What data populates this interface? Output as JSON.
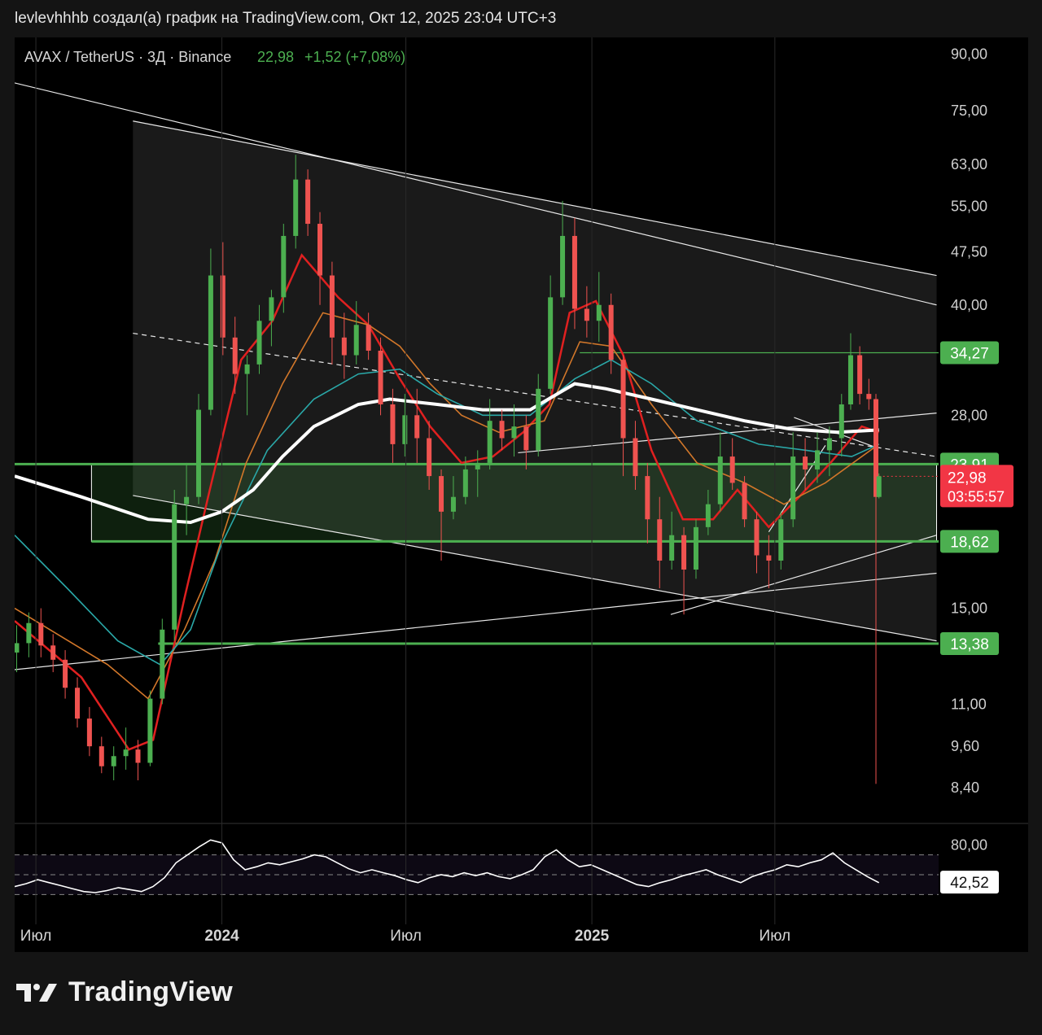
{
  "header": {
    "attribution": "levlevhhhb создал(а) график на TradingView.com, Окт 12, 2025 23:04 UTC+3"
  },
  "legend": {
    "symbol": "AVAX / TetherUS · 3Д · Binance",
    "price": "22,98",
    "change": "+1,52 (+7,08%)"
  },
  "colors": {
    "up": "#4caf50",
    "down": "#ef5350",
    "ema_short": "#e02020",
    "ema_mid": "#d2772a",
    "ema_long": "#2aa8a8",
    "ema_200": "#ffffff",
    "level_box": "#3b7a3b",
    "last_price": "#f23645"
  },
  "axis": {
    "price_ticks": [
      "90,00",
      "75,00",
      "63,00",
      "55,00",
      "47,50",
      "40,00",
      "28,00",
      "15,00",
      "11,00",
      "9,60",
      "8,40"
    ],
    "time_ticks": [
      "Июл",
      "2024",
      "Июл",
      "2025",
      "Июл"
    ],
    "rsi_ticks": [
      "80,00"
    ]
  },
  "badges": {
    "levels": [
      "34,27",
      "23,91",
      "18,62",
      "13,38"
    ],
    "last_price": "22,98",
    "countdown": "03:55:57",
    "rsi_value": "42,52"
  },
  "chart_data": {
    "type": "candlestick",
    "symbol": "AVAX / TetherUS",
    "timeframe": "3Д",
    "exchange": "Binance",
    "y_scale": "log",
    "ylim": [
      7.5,
      95
    ],
    "x_range": [
      "2023-06-10",
      "2025-12-10"
    ],
    "candles": [
      {
        "date": "2023-06-12",
        "o": 13.0,
        "h": 14.2,
        "l": 12.2,
        "c": 13.4
      },
      {
        "date": "2023-06-24",
        "o": 13.4,
        "h": 14.8,
        "l": 12.8,
        "c": 14.3
      },
      {
        "date": "2023-07-06",
        "o": 14.3,
        "h": 15.0,
        "l": 12.8,
        "c": 13.3
      },
      {
        "date": "2023-07-18",
        "o": 13.3,
        "h": 13.8,
        "l": 12.2,
        "c": 12.7
      },
      {
        "date": "2023-07-30",
        "o": 12.7,
        "h": 13.1,
        "l": 11.2,
        "c": 11.6
      },
      {
        "date": "2023-08-11",
        "o": 11.6,
        "h": 12.0,
        "l": 10.2,
        "c": 10.5
      },
      {
        "date": "2023-08-23",
        "o": 10.5,
        "h": 10.9,
        "l": 9.3,
        "c": 9.6
      },
      {
        "date": "2023-09-04",
        "o": 9.6,
        "h": 9.9,
        "l": 8.8,
        "c": 9.0
      },
      {
        "date": "2023-09-16",
        "o": 9.0,
        "h": 9.6,
        "l": 8.6,
        "c": 9.3
      },
      {
        "date": "2023-09-28",
        "o": 9.3,
        "h": 10.2,
        "l": 8.9,
        "c": 9.5
      },
      {
        "date": "2023-10-10",
        "o": 9.5,
        "h": 9.8,
        "l": 8.6,
        "c": 9.1
      },
      {
        "date": "2023-10-22",
        "o": 9.1,
        "h": 11.5,
        "l": 9.0,
        "c": 11.2
      },
      {
        "date": "2023-11-03",
        "o": 11.2,
        "h": 14.5,
        "l": 11.0,
        "c": 14.0
      },
      {
        "date": "2023-11-15",
        "o": 14.0,
        "h": 22.0,
        "l": 13.5,
        "c": 21.0
      },
      {
        "date": "2023-11-27",
        "o": 21.0,
        "h": 24.0,
        "l": 19.0,
        "c": 21.5
      },
      {
        "date": "2023-12-09",
        "o": 21.5,
        "h": 30.0,
        "l": 21.0,
        "c": 28.5
      },
      {
        "date": "2023-12-21",
        "o": 28.5,
        "h": 48.0,
        "l": 28.0,
        "c": 44.0
      },
      {
        "date": "2024-01-02",
        "o": 44.0,
        "h": 49.0,
        "l": 34.0,
        "c": 36.0
      },
      {
        "date": "2024-01-14",
        "o": 36.0,
        "h": 38.5,
        "l": 30.0,
        "c": 32.0
      },
      {
        "date": "2024-01-26",
        "o": 32.0,
        "h": 34.0,
        "l": 28.0,
        "c": 33.0
      },
      {
        "date": "2024-02-07",
        "o": 33.0,
        "h": 40.0,
        "l": 32.0,
        "c": 38.0
      },
      {
        "date": "2024-02-19",
        "o": 38.0,
        "h": 42.0,
        "l": 35.0,
        "c": 41.0
      },
      {
        "date": "2024-03-02",
        "o": 41.0,
        "h": 52.0,
        "l": 39.0,
        "c": 50.0
      },
      {
        "date": "2024-03-14",
        "o": 50.0,
        "h": 65.0,
        "l": 48.0,
        "c": 60.0
      },
      {
        "date": "2024-03-26",
        "o": 60.0,
        "h": 62.0,
        "l": 50.0,
        "c": 52.0
      },
      {
        "date": "2024-04-07",
        "o": 52.0,
        "h": 54.0,
        "l": 40.0,
        "c": 44.0
      },
      {
        "date": "2024-04-19",
        "o": 44.0,
        "h": 46.0,
        "l": 33.0,
        "c": 36.0
      },
      {
        "date": "2024-05-01",
        "o": 36.0,
        "h": 39.0,
        "l": 31.5,
        "c": 34.0
      },
      {
        "date": "2024-05-13",
        "o": 34.0,
        "h": 40.5,
        "l": 33.0,
        "c": 37.5
      },
      {
        "date": "2024-05-25",
        "o": 37.5,
        "h": 39.0,
        "l": 33.5,
        "c": 34.5
      },
      {
        "date": "2024-06-06",
        "o": 34.5,
        "h": 36.0,
        "l": 28.0,
        "c": 29.0
      },
      {
        "date": "2024-06-18",
        "o": 29.0,
        "h": 30.5,
        "l": 24.0,
        "c": 25.5
      },
      {
        "date": "2024-06-30",
        "o": 25.5,
        "h": 30.0,
        "l": 24.5,
        "c": 28.0
      },
      {
        "date": "2024-07-12",
        "o": 28.0,
        "h": 30.5,
        "l": 24.0,
        "c": 26.0
      },
      {
        "date": "2024-07-24",
        "o": 26.0,
        "h": 27.5,
        "l": 22.0,
        "c": 23.0
      },
      {
        "date": "2024-08-05",
        "o": 23.0,
        "h": 23.5,
        "l": 17.5,
        "c": 20.5
      },
      {
        "date": "2024-08-17",
        "o": 20.5,
        "h": 23.0,
        "l": 20.0,
        "c": 21.5
      },
      {
        "date": "2024-08-29",
        "o": 21.5,
        "h": 24.5,
        "l": 21.0,
        "c": 23.5
      },
      {
        "date": "2024-09-10",
        "o": 23.5,
        "h": 25.0,
        "l": 21.5,
        "c": 24.0
      },
      {
        "date": "2024-09-22",
        "o": 24.0,
        "h": 29.5,
        "l": 23.5,
        "c": 27.5
      },
      {
        "date": "2024-10-04",
        "o": 27.5,
        "h": 28.5,
        "l": 25.0,
        "c": 26.0
      },
      {
        "date": "2024-10-16",
        "o": 26.0,
        "h": 29.0,
        "l": 24.5,
        "c": 27.0
      },
      {
        "date": "2024-10-28",
        "o": 27.0,
        "h": 28.0,
        "l": 23.5,
        "c": 25.0
      },
      {
        "date": "2024-11-09",
        "o": 25.0,
        "h": 32.0,
        "l": 24.5,
        "c": 30.5
      },
      {
        "date": "2024-11-21",
        "o": 30.5,
        "h": 44.0,
        "l": 30.0,
        "c": 41.0
      },
      {
        "date": "2024-12-03",
        "o": 41.0,
        "h": 56.0,
        "l": 40.0,
        "c": 50.0
      },
      {
        "date": "2024-12-15",
        "o": 50.0,
        "h": 53.0,
        "l": 37.0,
        "c": 39.5
      },
      {
        "date": "2024-12-27",
        "o": 39.5,
        "h": 42.5,
        "l": 36.0,
        "c": 38.0
      },
      {
        "date": "2025-01-08",
        "o": 38.0,
        "h": 44.5,
        "l": 35.5,
        "c": 40.0
      },
      {
        "date": "2025-01-20",
        "o": 40.0,
        "h": 41.5,
        "l": 32.0,
        "c": 33.5
      },
      {
        "date": "2025-02-01",
        "o": 33.5,
        "h": 34.0,
        "l": 23.0,
        "c": 26.0
      },
      {
        "date": "2025-02-13",
        "o": 26.0,
        "h": 27.5,
        "l": 22.0,
        "c": 23.0
      },
      {
        "date": "2025-02-25",
        "o": 23.0,
        "h": 24.0,
        "l": 18.5,
        "c": 20.0
      },
      {
        "date": "2025-03-09",
        "o": 20.0,
        "h": 21.5,
        "l": 16.0,
        "c": 17.5
      },
      {
        "date": "2025-03-21",
        "o": 17.5,
        "h": 20.5,
        "l": 17.0,
        "c": 19.0
      },
      {
        "date": "2025-04-02",
        "o": 19.0,
        "h": 19.5,
        "l": 14.7,
        "c": 17.0
      },
      {
        "date": "2025-04-14",
        "o": 17.0,
        "h": 20.0,
        "l": 16.5,
        "c": 19.5
      },
      {
        "date": "2025-04-26",
        "o": 19.5,
        "h": 22.0,
        "l": 19.0,
        "c": 21.0
      },
      {
        "date": "2025-05-08",
        "o": 21.0,
        "h": 26.5,
        "l": 20.5,
        "c": 24.5
      },
      {
        "date": "2025-05-20",
        "o": 24.5,
        "h": 26.0,
        "l": 22.0,
        "c": 22.5
      },
      {
        "date": "2025-06-01",
        "o": 22.5,
        "h": 23.0,
        "l": 19.5,
        "c": 20.0
      },
      {
        "date": "2025-06-13",
        "o": 20.0,
        "h": 20.5,
        "l": 16.8,
        "c": 17.8
      },
      {
        "date": "2025-06-25",
        "o": 17.8,
        "h": 19.0,
        "l": 16.0,
        "c": 17.5
      },
      {
        "date": "2025-07-07",
        "o": 17.5,
        "h": 20.5,
        "l": 17.0,
        "c": 20.0
      },
      {
        "date": "2025-07-19",
        "o": 20.0,
        "h": 26.5,
        "l": 19.5,
        "c": 24.5
      },
      {
        "date": "2025-07-31",
        "o": 24.5,
        "h": 26.0,
        "l": 22.0,
        "c": 23.5
      },
      {
        "date": "2025-08-12",
        "o": 23.5,
        "h": 26.5,
        "l": 22.5,
        "c": 25.0
      },
      {
        "date": "2025-08-24",
        "o": 25.0,
        "h": 27.0,
        "l": 23.0,
        "c": 26.0
      },
      {
        "date": "2025-09-05",
        "o": 26.0,
        "h": 30.0,
        "l": 24.5,
        "c": 29.0
      },
      {
        "date": "2025-09-14",
        "o": 29.0,
        "h": 36.5,
        "l": 28.5,
        "c": 34.0
      },
      {
        "date": "2025-09-23",
        "o": 34.0,
        "h": 35.0,
        "l": 29.0,
        "c": 30.0
      },
      {
        "date": "2025-10-02",
        "o": 30.0,
        "h": 31.5,
        "l": 28.5,
        "c": 29.5
      },
      {
        "date": "2025-10-09",
        "o": 29.5,
        "h": 30.0,
        "l": 8.5,
        "c": 21.5
      },
      {
        "date": "2025-10-12",
        "o": 21.5,
        "h": 23.2,
        "l": 21.4,
        "c": 22.98
      }
    ],
    "moving_averages": [
      {
        "color": "#e02020",
        "points": [
          [
            "2023-06-10",
            14.4
          ],
          [
            "2023-08-15",
            12.0
          ],
          [
            "2023-10-01",
            9.5
          ],
          [
            "2023-10-25",
            9.8
          ],
          [
            "2023-11-25",
            15.5
          ],
          [
            "2023-12-20",
            22.0
          ],
          [
            "2024-01-20",
            33.5
          ],
          [
            "2024-02-20",
            38.0
          ],
          [
            "2024-03-20",
            47.0
          ],
          [
            "2024-04-25",
            41.0
          ],
          [
            "2024-05-25",
            37.5
          ],
          [
            "2024-06-25",
            31.5
          ],
          [
            "2024-07-25",
            27.0
          ],
          [
            "2024-08-25",
            24.0
          ],
          [
            "2024-09-25",
            24.5
          ],
          [
            "2024-10-25",
            26.5
          ],
          [
            "2024-11-20",
            29.0
          ],
          [
            "2024-12-10",
            39.0
          ],
          [
            "2025-01-05",
            40.5
          ],
          [
            "2025-02-01",
            34.0
          ],
          [
            "2025-03-01",
            25.0
          ],
          [
            "2025-04-01",
            20.0
          ],
          [
            "2025-05-01",
            20.0
          ],
          [
            "2025-05-25",
            22.0
          ],
          [
            "2025-06-25",
            19.5
          ],
          [
            "2025-07-25",
            21.5
          ],
          [
            "2025-08-25",
            24.0
          ],
          [
            "2025-09-25",
            27.0
          ],
          [
            "2025-10-12",
            26.5
          ]
        ]
      },
      {
        "color": "#d2772a",
        "points": [
          [
            "2023-06-10",
            15.0
          ],
          [
            "2023-09-10",
            12.5
          ],
          [
            "2023-10-20",
            11.2
          ],
          [
            "2023-11-25",
            14.0
          ],
          [
            "2023-12-25",
            17.5
          ],
          [
            "2024-01-25",
            24.0
          ],
          [
            "2024-03-01",
            31.0
          ],
          [
            "2024-04-10",
            39.0
          ],
          [
            "2024-05-25",
            37.5
          ],
          [
            "2024-06-25",
            35.0
          ],
          [
            "2024-07-25",
            31.0
          ],
          [
            "2024-08-25",
            28.0
          ],
          [
            "2024-10-01",
            26.5
          ],
          [
            "2024-11-15",
            27.5
          ],
          [
            "2024-12-20",
            35.5
          ],
          [
            "2025-01-20",
            35.0
          ],
          [
            "2025-03-01",
            29.0
          ],
          [
            "2025-04-15",
            24.0
          ],
          [
            "2025-06-01",
            22.5
          ],
          [
            "2025-07-10",
            21.0
          ],
          [
            "2025-08-20",
            22.5
          ],
          [
            "2025-10-12",
            25.5
          ]
        ]
      },
      {
        "color": "#2aa8a8",
        "points": [
          [
            "2023-06-10",
            19.0
          ],
          [
            "2023-08-01",
            16.0
          ],
          [
            "2023-09-20",
            13.5
          ],
          [
            "2023-11-01",
            12.5
          ],
          [
            "2023-12-01",
            14.0
          ],
          [
            "2024-01-01",
            18.5
          ],
          [
            "2024-02-15",
            25.0
          ],
          [
            "2024-04-01",
            29.5
          ],
          [
            "2024-05-15",
            32.0
          ],
          [
            "2024-06-25",
            32.5
          ],
          [
            "2024-08-01",
            30.0
          ],
          [
            "2024-09-15",
            28.0
          ],
          [
            "2024-11-01",
            28.0
          ],
          [
            "2024-12-15",
            31.5
          ],
          [
            "2025-01-20",
            33.5
          ],
          [
            "2025-03-01",
            31.0
          ],
          [
            "2025-04-15",
            27.5
          ],
          [
            "2025-06-15",
            25.5
          ],
          [
            "2025-08-01",
            25.0
          ],
          [
            "2025-09-15",
            24.5
          ],
          [
            "2025-10-12",
            25.5
          ]
        ]
      },
      {
        "color": "#ffffff",
        "points": [
          [
            "2023-06-10",
            23.0
          ],
          [
            "2023-08-15",
            21.5
          ],
          [
            "2023-10-20",
            20.0
          ],
          [
            "2023-12-01",
            19.8
          ],
          [
            "2024-01-01",
            20.5
          ],
          [
            "2024-02-01",
            22.0
          ],
          [
            "2024-03-01",
            24.5
          ],
          [
            "2024-04-01",
            27.0
          ],
          [
            "2024-05-15",
            29.0
          ],
          [
            "2024-06-15",
            29.5
          ],
          [
            "2024-08-01",
            29.0
          ],
          [
            "2024-09-15",
            28.5
          ],
          [
            "2024-11-01",
            28.5
          ],
          [
            "2024-12-15",
            31.0
          ],
          [
            "2025-01-15",
            30.5
          ],
          [
            "2025-03-01",
            29.5
          ],
          [
            "2025-04-15",
            28.5
          ],
          [
            "2025-06-01",
            27.5
          ],
          [
            "2025-07-15",
            26.8
          ],
          [
            "2025-09-01",
            26.5
          ],
          [
            "2025-10-12",
            26.7
          ]
        ]
      }
    ],
    "horizontal_levels": [
      34.27,
      23.91,
      18.62,
      13.38
    ],
    "rsi": {
      "last": 42.52,
      "bands": [
        70,
        50,
        30
      ],
      "values": [
        38,
        41,
        45,
        42,
        39,
        36,
        33,
        32,
        34,
        37,
        35,
        33,
        38,
        47,
        62,
        70,
        78,
        85,
        82,
        65,
        55,
        58,
        62,
        60,
        63,
        66,
        70,
        68,
        62,
        56,
        52,
        55,
        52,
        49,
        45,
        42,
        47,
        50,
        48,
        52,
        49,
        52,
        48,
        46,
        50,
        55,
        68,
        75,
        65,
        58,
        60,
        55,
        50,
        45,
        40,
        38,
        42,
        45,
        49,
        52,
        55,
        50,
        46,
        42,
        48,
        52,
        55,
        60,
        58,
        62,
        65,
        72,
        62,
        55,
        48,
        42
      ]
    }
  }
}
